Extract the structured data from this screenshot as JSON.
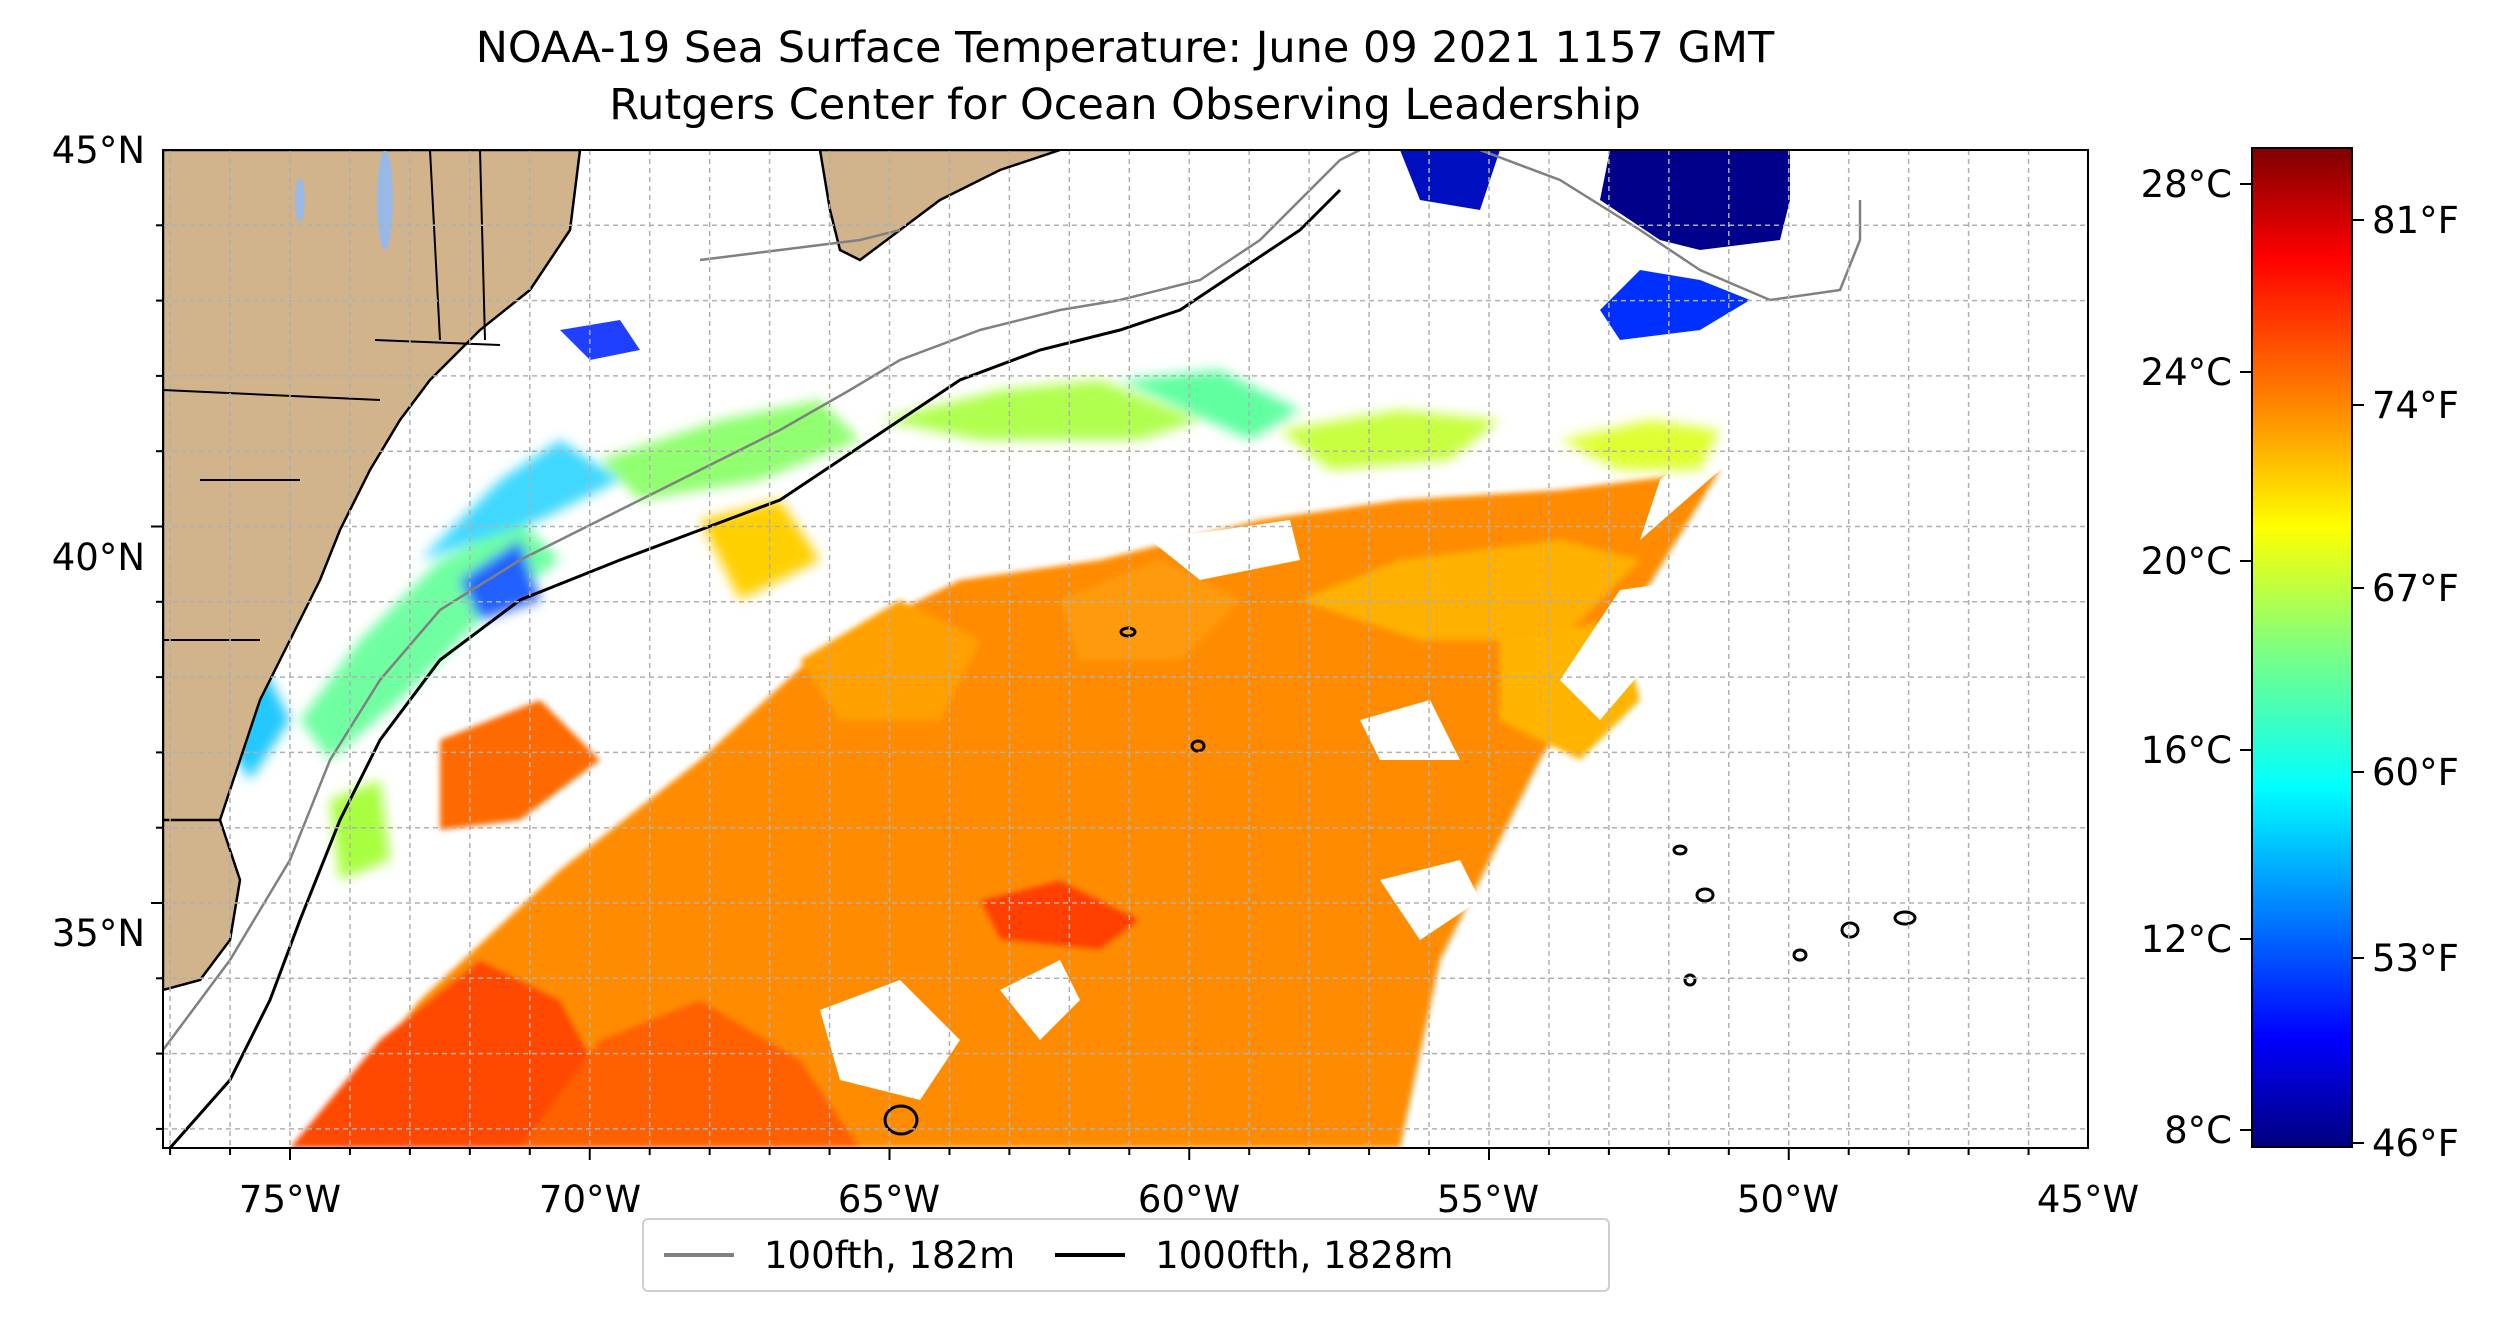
{
  "title": "NOAA-19 Sea Surface Temperature: June 09 2021 1157 GMT",
  "subtitle": "Rutgers Center for Ocean Observing Leadership",
  "axes": {
    "lon_labels": [
      "75°W",
      "70°W",
      "65°W",
      "60°W",
      "55°W",
      "50°W",
      "45°W"
    ],
    "lat_labels": [
      "45°N",
      "40°N",
      "35°N"
    ]
  },
  "colorbar": {
    "celsius_labels": [
      "28°C",
      "24°C",
      "20°C",
      "16°C",
      "12°C",
      "8°C"
    ],
    "fahrenheit_labels": [
      "81°F",
      "74°F",
      "67°F",
      "60°F",
      "53°F",
      "46°F"
    ],
    "colormap": "jet",
    "colors": [
      "#00007f",
      "#0000ff",
      "#007fff",
      "#00ffff",
      "#7fff7f",
      "#ffff00",
      "#ff7f00",
      "#ff0000",
      "#7f0000"
    ]
  },
  "legend": {
    "items": [
      {
        "label": "100fth, 182m",
        "color": "#808080"
      },
      {
        "label": "1000fth, 1828m",
        "color": "#000000"
      }
    ]
  },
  "colors": {
    "land": "#d2b48c",
    "lakes": "#9ab8e6",
    "grid": "#b0b0b0"
  }
}
